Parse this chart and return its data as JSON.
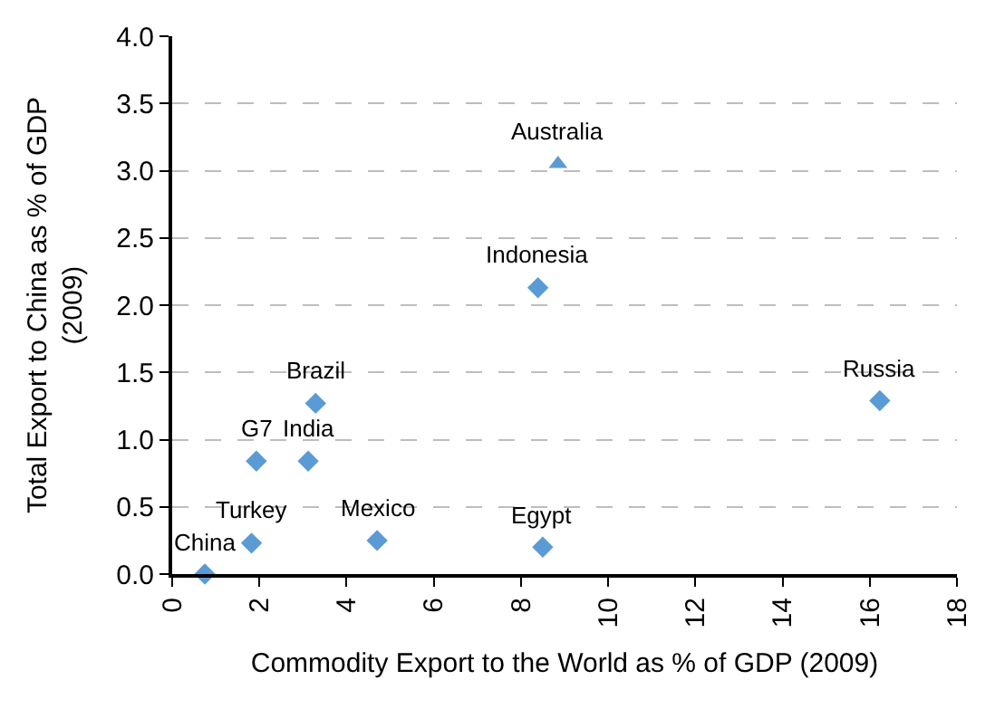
{
  "chart_data": {
    "type": "scatter",
    "xlabel": "Commodity Export to the World as % of GDP (2009)",
    "ylabel": "Total Export to China as % of GDP\n(2009)",
    "series": [
      {
        "color": "#5b9bd5",
        "marker": "diamond",
        "x": [
          0.75,
          1.82,
          1.93,
          3.12,
          3.29,
          4.7,
          8.5,
          8.39,
          16.23
        ],
        "values": [
          0.0,
          0.23,
          0.84,
          0.84,
          1.27,
          0.25,
          0.2,
          2.13,
          1.29
        ]
      },
      {
        "color": "#5b9bd5",
        "marker": "triangle",
        "x": [
          8.85
        ],
        "values": [
          3.05
        ]
      }
    ],
    "annotations": [
      {
        "text": "China",
        "x": 0.75,
        "y": 0.0
      },
      {
        "text": "Turkey",
        "x": 1.82,
        "y": 0.23
      },
      {
        "text": "G7",
        "x": 1.93,
        "y": 0.84
      },
      {
        "text": "India",
        "x": 3.12,
        "y": 0.84
      },
      {
        "text": "Brazil",
        "x": 3.29,
        "y": 1.27
      },
      {
        "text": "Mexico",
        "x": 4.7,
        "y": 0.25
      },
      {
        "text": "Egypt",
        "x": 8.5,
        "y": 0.2
      },
      {
        "text": "Indonesia",
        "x": 8.39,
        "y": 2.13
      },
      {
        "text": "Australia",
        "x": 8.85,
        "y": 3.05
      },
      {
        "text": "Russia",
        "x": 16.23,
        "y": 1.29
      }
    ],
    "xlim": [
      0,
      18
    ],
    "xticks": [
      0,
      2,
      4,
      6,
      8,
      10,
      12,
      14,
      16,
      18
    ],
    "ylim": [
      0,
      4
    ],
    "yticks": [
      {
        "value": 0,
        "label": "0.0"
      },
      {
        "value": 0.5,
        "label": "0.5"
      },
      {
        "value": 1,
        "label": "1.0"
      },
      {
        "value": 1.5,
        "label": "1.5"
      },
      {
        "value": 2,
        "label": "2.0"
      },
      {
        "value": 2.5,
        "label": "2.5"
      },
      {
        "value": 3,
        "label": "3.0"
      },
      {
        "value": 3.5,
        "label": "3.5"
      },
      {
        "value": 4,
        "label": "4.0"
      }
    ],
    "grid": "y"
  }
}
